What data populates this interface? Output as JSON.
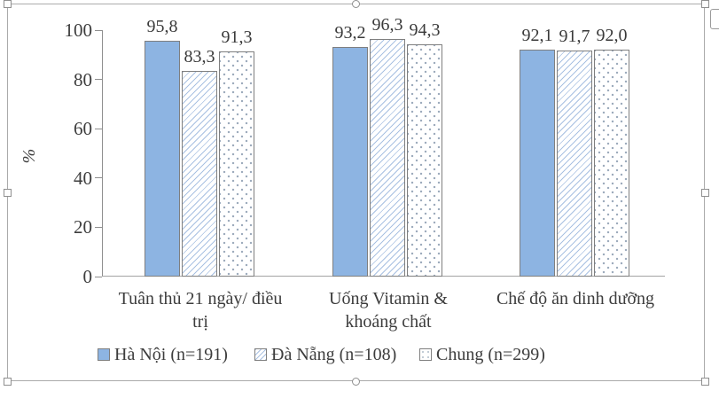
{
  "window": {
    "background": "#ffffff"
  },
  "selection": {
    "frame_border_color": "#ababab",
    "handle_fill": "#fdfdfd",
    "handle_border": "#8f8f8f"
  },
  "chart_data": {
    "type": "bar",
    "title": "",
    "ylabel": "%",
    "xlabel": "",
    "ylim": [
      0,
      100
    ],
    "yticks": [
      0,
      20,
      40,
      60,
      80,
      100
    ],
    "grid": false,
    "legend_position": "bottom",
    "decimal_separator": ",",
    "categories": [
      "Tuân thủ 21 ngày/ điều trị",
      "Uống Vitamin & khoáng chất",
      "Chế độ ăn dinh dưỡng"
    ],
    "category_lines": [
      "Tuân thủ 21 ngày/ điều\ntrị",
      "Uống Vitamin &\nkhoáng chất",
      "Chế độ ăn dinh dưỡng"
    ],
    "series": [
      {
        "name": "Hà Nội (n=191)",
        "style": "solid",
        "values": [
          95.8,
          93.2,
          92.1
        ],
        "value_labels": [
          "95,8",
          "93,2",
          "92,1"
        ]
      },
      {
        "name": "Đà Nẵng (n=108)",
        "style": "hatch",
        "values": [
          83.3,
          96.3,
          91.7
        ],
        "value_labels": [
          "83,3",
          "96,3",
          "91,7"
        ]
      },
      {
        "name": "Chung (n=299)",
        "style": "dots",
        "values": [
          91.3,
          94.3,
          92.0
        ],
        "value_labels": [
          "91,3",
          "94,3",
          "92,0"
        ]
      }
    ],
    "colors": {
      "bar_fill_blue": "#8db4e2",
      "bar_border": "#7f7f7f",
      "hatch_line": "#a9c1e2",
      "dot": "#9aa9ba",
      "axis": "#8e8e8e",
      "text": "#3d3d3d"
    }
  }
}
